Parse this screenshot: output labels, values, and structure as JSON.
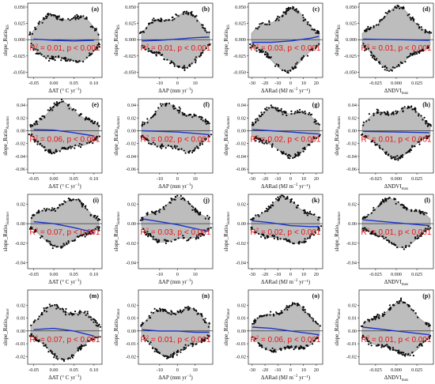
{
  "colors": {
    "cloud": "#bdbdbd",
    "cloud_dark": "#8c8c8c",
    "points": "#0a0a0a",
    "fit": "#1a33cc",
    "zero": "#1a1a1a",
    "stat": "#ee1111"
  },
  "rows": [
    {
      "ylabel_base": "slope_Ratio",
      "ylabel_sub": "RS",
      "yticks": [
        -0.05,
        -0.025,
        0.0,
        0.025,
        0.05
      ],
      "ytick_labels": [
        "-0.050",
        "-0.025",
        "0.000",
        "0.025",
        "0.050"
      ],
      "ylim": [
        -0.058,
        0.056
      ]
    },
    {
      "ylabel_base": "slope_Ratio",
      "ylabel_sub": "Autumn",
      "yticks": [
        -0.06,
        -0.04,
        -0.02,
        0.0,
        0.02,
        0.04
      ],
      "ytick_labels": [
        "-0.06",
        "-0.04",
        "-0.02",
        "0.00",
        "0.02",
        "0.04"
      ],
      "ylim": [
        -0.066,
        0.05
      ]
    },
    {
      "ylabel_base": "slope_Ratio",
      "ylabel_sub": "Summer",
      "yticks": [
        -0.04,
        -0.02,
        0.0,
        0.02
      ],
      "ytick_labels": [
        "-0.04",
        "-0.02",
        "0.00",
        "0.02"
      ],
      "ylim": [
        -0.046,
        0.03
      ]
    },
    {
      "ylabel_base": "slope_Ratio",
      "ylabel_sub": "Winter",
      "yticks": [
        -0.02,
        -0.01,
        0.0,
        0.01,
        0.02
      ],
      "ytick_labels": [
        "-0.02",
        "-0.01",
        "0.00",
        "0.01",
        "0.02"
      ],
      "ylim": [
        -0.026,
        0.032
      ]
    }
  ],
  "columns": [
    {
      "xlabel_base": "ΔAT (° C yr",
      "xlabel_sup": "−1",
      "xlabel_tail": ")",
      "xticks": [
        -0.05,
        0.0,
        0.05,
        0.1
      ],
      "xtick_labels": [
        "-0.05",
        "0.00",
        "0.05",
        "0.10"
      ],
      "xlim": [
        -0.065,
        0.12
      ]
    },
    {
      "xlabel_base": "ΔAP (mm yr",
      "xlabel_sup": "−1",
      "xlabel_tail": ")",
      "xticks": [
        -10,
        0,
        10
      ],
      "xtick_labels": [
        "-10",
        "0",
        "10"
      ],
      "xlim": [
        -22,
        20
      ]
    },
    {
      "xlabel_base": "ΔARad (MJ m",
      "xlabel_sup": "−2",
      "xlabel_tail": " yr⁻¹)",
      "xticks": [
        -30,
        -20,
        -10,
        0,
        10,
        20
      ],
      "xtick_labels": [
        "-30",
        "-20",
        "-10",
        "0",
        "10",
        "20"
      ],
      "xlim": [
        -33,
        25
      ]
    },
    {
      "xlabel_base": "ΔNDVI",
      "xlabel_sup": "",
      "xlabel_tail": "",
      "xlabel_sub": "max",
      "xticks": [
        -0.025,
        0.0,
        0.025
      ],
      "xtick_labels": [
        "-0.025",
        "0.000",
        "0.025"
      ],
      "xlim": [
        -0.045,
        0.045
      ]
    }
  ],
  "chart_data": [
    {
      "panel": "(a)",
      "type": "scatter",
      "x_var": "ΔAT",
      "y_var": "slope_RatioRS",
      "r2": "0.01",
      "p": "p < 0.001",
      "fit": {
        "x": [
          -0.05,
          0.0,
          0.05,
          0.1
        ],
        "y": [
          0.001,
          -0.001,
          -0.002,
          -0.001
        ]
      }
    },
    {
      "panel": "(b)",
      "type": "scatter",
      "x_var": "ΔAP",
      "y_var": "slope_RatioRS",
      "r2": "0.01",
      "p": "p < 0.001",
      "fit": {
        "x": [
          -20,
          -10,
          0,
          10,
          18
        ],
        "y": [
          -0.002,
          -0.001,
          0.001,
          0.003,
          0.004
        ]
      }
    },
    {
      "panel": "(c)",
      "type": "scatter",
      "x_var": "ΔARad",
      "y_var": "slope_RatioRS",
      "r2": "0.03",
      "p": "p < 0.001",
      "fit": {
        "x": [
          -30,
          -15,
          0,
          15,
          22
        ],
        "y": [
          -0.004,
          -0.004,
          -0.002,
          0.002,
          0.005
        ]
      }
    },
    {
      "panel": "(d)",
      "type": "scatter",
      "x_var": "ΔNDVImax",
      "y_var": "slope_RatioRS",
      "r2": "0.01",
      "p": "p < 0.001",
      "fit": {
        "x": [
          -0.04,
          0.0,
          0.04
        ],
        "y": [
          0.001,
          0.0,
          -0.001
        ]
      }
    },
    {
      "panel": "(e)",
      "type": "scatter",
      "x_var": "ΔAT",
      "y_var": "slope_RatioAutumn",
      "r2": "0.06",
      "p": "p < 0.001",
      "fit": {
        "x": [
          -0.05,
          0.0,
          0.05,
          0.1
        ],
        "y": [
          0.002,
          0.001,
          -0.003,
          -0.008
        ]
      }
    },
    {
      "panel": "(f)",
      "type": "scatter",
      "x_var": "ΔAP",
      "y_var": "slope_RatioAutumn",
      "r2": "0.02",
      "p": "p < 0.001",
      "fit": {
        "x": [
          -20,
          -10,
          0,
          10,
          18
        ],
        "y": [
          0.0,
          -0.001,
          -0.002,
          -0.004,
          -0.006
        ]
      }
    },
    {
      "panel": "(g)",
      "type": "scatter",
      "x_var": "ΔARad",
      "y_var": "slope_RatioAutumn",
      "r2": "0.02",
      "p": "p < 0.001",
      "fit": {
        "x": [
          -30,
          -15,
          0,
          15,
          22
        ],
        "y": [
          0.002,
          0.0,
          -0.002,
          -0.004,
          -0.005
        ]
      }
    },
    {
      "panel": "(h)",
      "type": "scatter",
      "x_var": "ΔNDVImax",
      "y_var": "slope_RatioAutumn",
      "r2": "0.01",
      "p": "p < 0.001",
      "fit": {
        "x": [
          -0.04,
          0.0,
          0.04
        ],
        "y": [
          -0.001,
          -0.002,
          -0.003
        ]
      }
    },
    {
      "panel": "(i)",
      "type": "scatter",
      "x_var": "ΔAT",
      "y_var": "slope_RatioSummer",
      "r2": "0.07",
      "p": "p < 0.001",
      "fit": {
        "x": [
          -0.05,
          0.0,
          0.05,
          0.1
        ],
        "y": [
          0.002,
          0.0,
          -0.004,
          -0.009
        ]
      }
    },
    {
      "panel": "(j)",
      "type": "scatter",
      "x_var": "ΔAP",
      "y_var": "slope_RatioSummer",
      "r2": "0.03",
      "p": "p < 0.001",
      "fit": {
        "x": [
          -20,
          -10,
          0,
          10,
          18
        ],
        "y": [
          0.005,
          0.002,
          -0.001,
          -0.005,
          -0.008
        ]
      }
    },
    {
      "panel": "(k)",
      "type": "scatter",
      "x_var": "ΔARad",
      "y_var": "slope_RatioSummer",
      "r2": "0.02",
      "p": "p < 0.001",
      "fit": {
        "x": [
          -30,
          -15,
          0,
          15,
          22
        ],
        "y": [
          0.003,
          0.001,
          -0.002,
          -0.003,
          -0.003
        ]
      }
    },
    {
      "panel": "(l)",
      "type": "scatter",
      "x_var": "ΔNDVImax",
      "y_var": "slope_RatioSummer",
      "r2": "0.01",
      "p": "p < 0.001",
      "fit": {
        "x": [
          -0.04,
          0.0,
          0.04
        ],
        "y": [
          0.004,
          0.001,
          -0.002
        ]
      }
    },
    {
      "panel": "(m)",
      "type": "scatter",
      "x_var": "ΔAT",
      "y_var": "slope_RatioWinter",
      "r2": "0.07",
      "p": "p < 0.001",
      "fit": {
        "x": [
          -0.05,
          0.0,
          0.05,
          0.1
        ],
        "y": [
          0.001,
          0.002,
          0.0,
          -0.004
        ]
      }
    },
    {
      "panel": "(n)",
      "type": "scatter",
      "x_var": "ΔAP",
      "y_var": "slope_RatioWinter",
      "r2": "0.01",
      "p": "p < 0.001",
      "fit": {
        "x": [
          -20,
          -10,
          0,
          10,
          18
        ],
        "y": [
          0.001,
          0.0,
          0.0,
          -0.001,
          -0.001
        ]
      }
    },
    {
      "panel": "(o)",
      "type": "scatter",
      "x_var": "ΔARad",
      "y_var": "slope_RatioWinter",
      "r2": "0.06",
      "p": "p < 0.001",
      "fit": {
        "x": [
          -30,
          -15,
          0,
          15,
          22
        ],
        "y": [
          0.003,
          0.002,
          0.0,
          -0.002,
          -0.003
        ]
      }
    },
    {
      "panel": "(p)",
      "type": "scatter",
      "x_var": "ΔNDVImax",
      "y_var": "slope_RatioWinter",
      "r2": "0.01",
      "p": "p < 0.001",
      "fit": {
        "x": [
          -0.04,
          0.0,
          0.04
        ],
        "y": [
          0.003,
          0.0,
          -0.003
        ]
      }
    }
  ]
}
